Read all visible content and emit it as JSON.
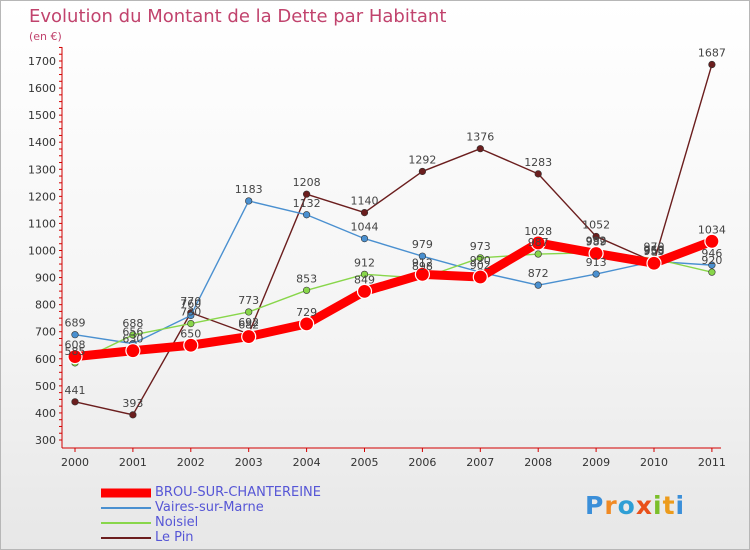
{
  "title": "Evolution du Montant de la Dette par Habitant",
  "unit_label": "(en €)",
  "logo": {
    "text": "Proxiti",
    "colors": [
      "#3b8fd9",
      "#f08a24",
      "#2f9fd5",
      "#e9501a",
      "#7bbf2a",
      "#ec9b1c",
      "#3b8fd9"
    ]
  },
  "chart_data": {
    "type": "line",
    "title": "Evolution du Montant de la Dette par Habitant",
    "ylabel": "(en €)",
    "x": [
      "2000",
      "2001",
      "2002",
      "2003",
      "2004",
      "2005",
      "2006",
      "2007",
      "2008",
      "2009",
      "2010",
      "2011"
    ],
    "ylim": [
      300,
      1700
    ],
    "yticks": [
      300,
      400,
      500,
      600,
      700,
      800,
      900,
      1000,
      1100,
      1200,
      1300,
      1400,
      1500,
      1600,
      1700
    ],
    "grid": false,
    "legend_position": "bottom-left",
    "series": [
      {
        "name": "BROU-SUR-CHANTEREINE",
        "color": "#ff0000",
        "values": [
          608,
          630,
          650,
          682,
          729,
          849,
          912,
          902,
          1028,
          989,
          953,
          1034
        ]
      },
      {
        "name": "Vaires-sur-Marne",
        "color": "#4a90d0",
        "values": [
          689,
          656,
          760,
          1183,
          1132,
          1044,
          979,
          920,
          872,
          913,
          960,
          946
        ]
      },
      {
        "name": "Noisiel",
        "color": "#88d64a",
        "values": [
          585,
          688,
          730,
          773,
          853,
          912,
          898,
          973,
          987,
          992,
          970,
          920
        ]
      },
      {
        "name": "Le Pin",
        "color": "#6b1e1e",
        "values": [
          441,
          393,
          770,
          692,
          1208,
          1140,
          1292,
          1376,
          1283,
          1052,
          958,
          1687
        ]
      }
    ]
  }
}
